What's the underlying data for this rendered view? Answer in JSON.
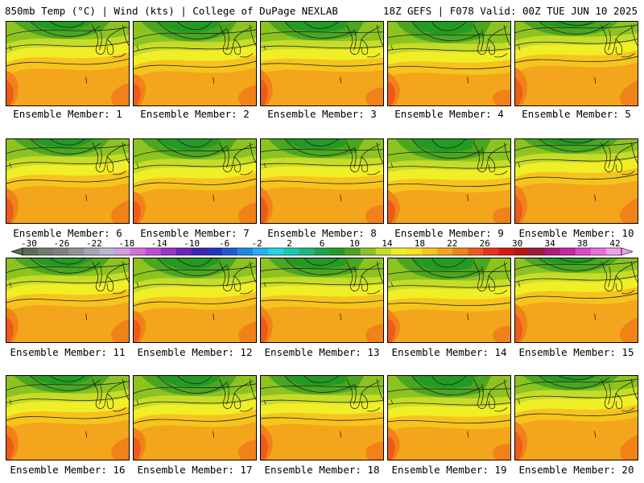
{
  "header": {
    "left_title": "850mb Temp (°C) | Wind (kts) | College of DuPage NEXLAB",
    "right_title": "18Z GEFS | F078 Valid: 00Z TUE JUN 10 2025"
  },
  "members": [
    {
      "label": "Ensemble Member: 1"
    },
    {
      "label": "Ensemble Member: 2"
    },
    {
      "label": "Ensemble Member: 3"
    },
    {
      "label": "Ensemble Member: 4"
    },
    {
      "label": "Ensemble Member: 5"
    },
    {
      "label": "Ensemble Member: 6"
    },
    {
      "label": "Ensemble Member: 7"
    },
    {
      "label": "Ensemble Member: 8"
    },
    {
      "label": "Ensemble Member: 9"
    },
    {
      "label": "Ensemble Member: 10"
    },
    {
      "label": "Ensemble Member: 11"
    },
    {
      "label": "Ensemble Member: 12"
    },
    {
      "label": "Ensemble Member: 13"
    },
    {
      "label": "Ensemble Member: 14"
    },
    {
      "label": "Ensemble Member: 15"
    },
    {
      "label": "Ensemble Member: 16"
    },
    {
      "label": "Ensemble Member: 17"
    },
    {
      "label": "Ensemble Member: 18"
    },
    {
      "label": "Ensemble Member: 19"
    },
    {
      "label": "Ensemble Member: 20"
    }
  ],
  "legend": {
    "tick_labels": [
      "-30",
      "-26",
      "-22",
      "-18",
      "-14",
      "-10",
      "-6",
      "-2",
      "2",
      "6",
      "10",
      "14",
      "18",
      "22",
      "26",
      "30",
      "34",
      "38",
      "42"
    ],
    "colors": [
      "#5a6b5a",
      "#6d7d6d",
      "#808080",
      "#939393",
      "#a6a6b3",
      "#b7b7d8",
      "#d39be3",
      "#d46fdc",
      "#c14bd6",
      "#9a34c9",
      "#6f22c0",
      "#3f22b5",
      "#2233c2",
      "#1e5bd6",
      "#1e88e6",
      "#25b2ee",
      "#22d4e4",
      "#19c9b3",
      "#1ab87e",
      "#1ea646",
      "#239b22",
      "#4aa61f",
      "#8cc321",
      "#c7dc27",
      "#f0ee27",
      "#fbe11f",
      "#f6c41c",
      "#f3a51b",
      "#f08219",
      "#ee5a19",
      "#e8331a",
      "#d31a1a",
      "#b81414",
      "#9b1a3a",
      "#b21a7a",
      "#cc24a8",
      "#dd47c8",
      "#ea6fdd",
      "#f2a0ec"
    ]
  }
}
